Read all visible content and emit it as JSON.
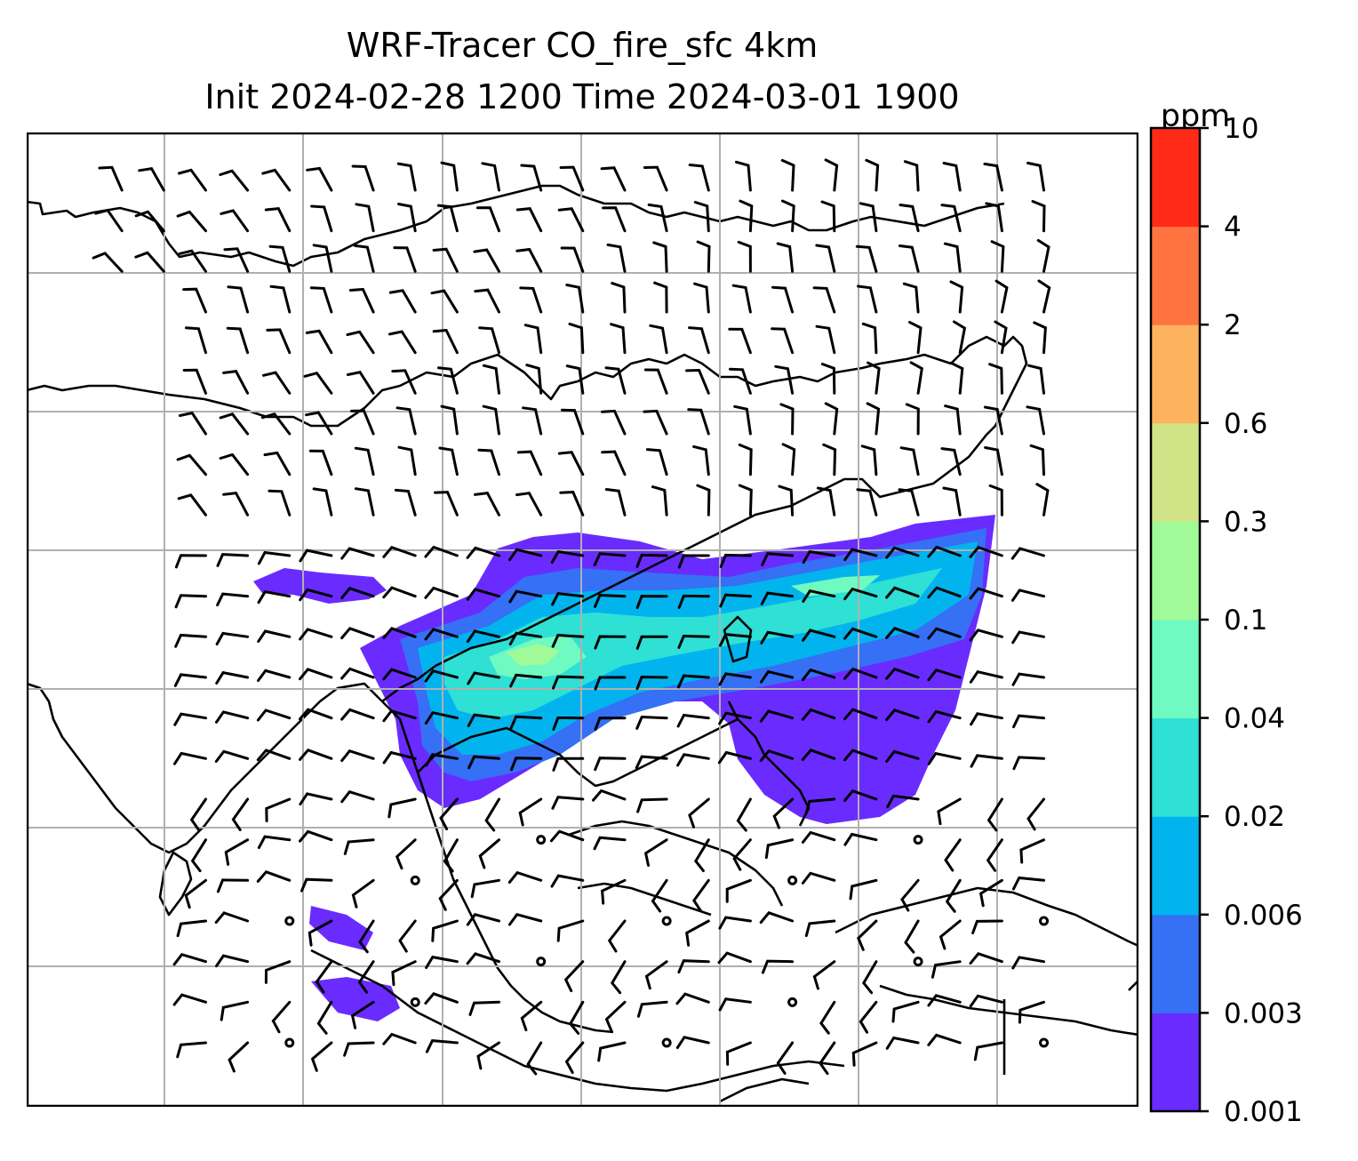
{
  "title": {
    "line1": "WRF-Tracer CO_fire_sfc 4km",
    "line2": "Init 2024-02-28 1200 Time 2024-03-01 1900"
  },
  "colorbar": {
    "unit": "ppm",
    "levels": [
      "0.001",
      "0.003",
      "0.006",
      "0.02",
      "0.04",
      "0.1",
      "0.3",
      "0.6",
      "2",
      "4",
      "10"
    ],
    "colors": [
      "#6a2bff",
      "#3570f5",
      "#02b4ee",
      "#2fe0d4",
      "#6efac0",
      "#a0fa98",
      "#d0e386",
      "#fdb25e",
      "#ff7341",
      "#ff2a17"
    ]
  },
  "map": {
    "layers": [
      "coastlines",
      "gridlines",
      "co-concentration-fill",
      "wind-barbs"
    ],
    "gridline_color": "#b0b0b0",
    "coastline_color": "#000000"
  }
}
